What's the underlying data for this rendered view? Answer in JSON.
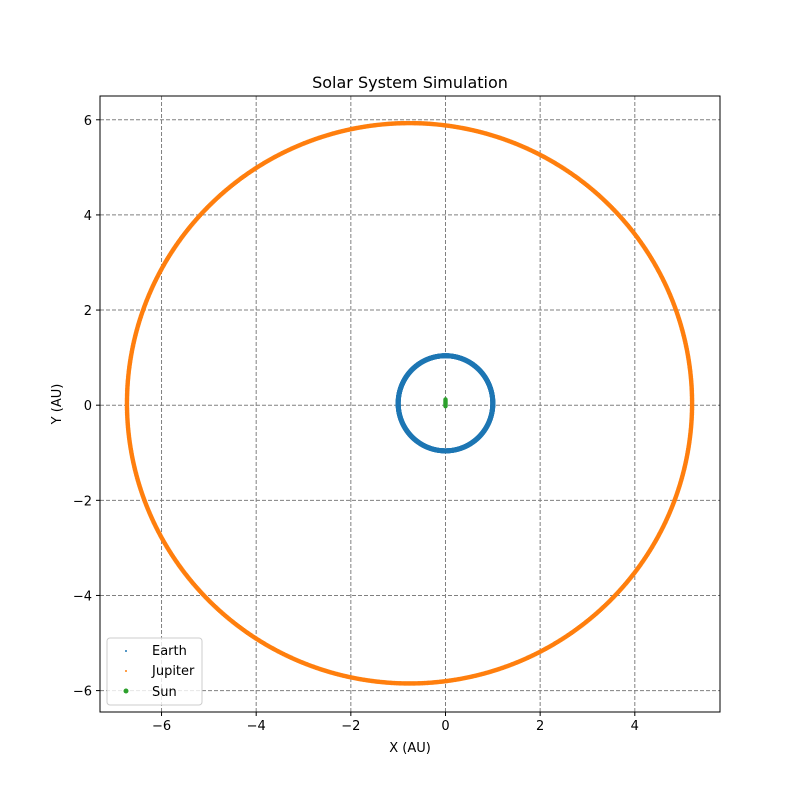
{
  "chart_data": {
    "type": "scatter",
    "title": "Solar System Simulation",
    "xlabel": "X (AU)",
    "ylabel": "Y (AU)",
    "xlim": [
      -7.3,
      5.8
    ],
    "ylim": [
      -6.45,
      6.5
    ],
    "xticks": [
      -6,
      -4,
      -2,
      0,
      2,
      4
    ],
    "yticks": [
      -6,
      -4,
      -2,
      0,
      2,
      4,
      6
    ],
    "grid": true,
    "grid_style": "dashed",
    "legend_position": "lower-left",
    "series": [
      {
        "name": "Earth",
        "color": "#1f77b4",
        "marker": "point",
        "orbit": {
          "center_x": 0.0,
          "center_y": 0.04,
          "semi_major_x": 1.0,
          "semi_minor_y": 1.0,
          "band_width": 0.06
        }
      },
      {
        "name": "Jupiter",
        "color": "#ff7f0e",
        "marker": "point",
        "orbit": {
          "center_x": -0.76,
          "center_y": 0.04,
          "semi_major_x": 5.97,
          "semi_minor_y": 5.89,
          "band_width": 0.05
        }
      },
      {
        "name": "Sun",
        "color": "#2ca02c",
        "marker": "circle",
        "points": [
          [
            0.0,
            0.0
          ],
          [
            0.0,
            0.02
          ],
          [
            0.0,
            0.04
          ],
          [
            0.0,
            0.06
          ],
          [
            0.0,
            0.08
          ],
          [
            0.0,
            0.1
          ],
          [
            0.0,
            0.12
          ],
          [
            0.0,
            -0.02
          ]
        ]
      }
    ]
  }
}
